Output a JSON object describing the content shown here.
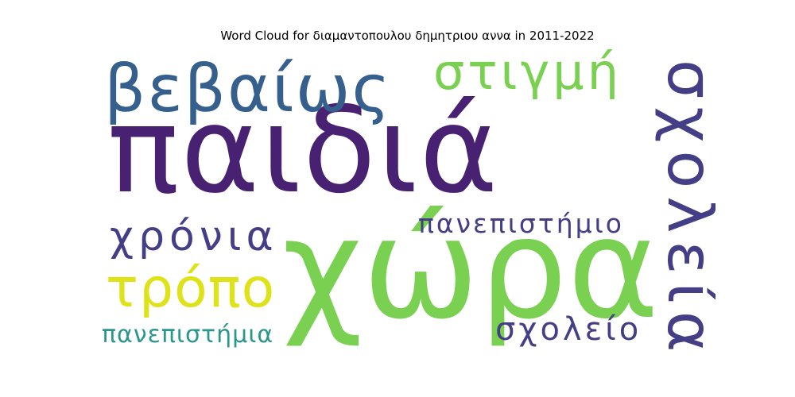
{
  "title": "Word Cloud for διαμαντοπουλου δημητριου αννα in 2011-2022",
  "chart_data": {
    "type": "wordcloud",
    "title": "Word Cloud for διαμαντοπουλου δημητριου αννα in 2011-2022",
    "words": [
      {
        "text": "παιδιά",
        "weight": 1.0,
        "color": "#482173",
        "orientation": "horizontal"
      },
      {
        "text": "χώρα",
        "weight": 0.9,
        "color": "#7ad151",
        "orientation": "horizontal"
      },
      {
        "text": "σχολεία",
        "weight": 0.55,
        "color": "#433e85",
        "orientation": "vertical"
      },
      {
        "text": "βεβαίως",
        "weight": 0.5,
        "color": "#355f8d",
        "orientation": "horizontal"
      },
      {
        "text": "στιγμή",
        "weight": 0.4,
        "color": "#7ad151",
        "orientation": "horizontal"
      },
      {
        "text": "τρόπο",
        "weight": 0.4,
        "color": "#dde318",
        "orientation": "horizontal"
      },
      {
        "text": "χρόνια",
        "weight": 0.35,
        "color": "#433e85",
        "orientation": "horizontal"
      },
      {
        "text": "πανεπιστήμιο",
        "weight": 0.25,
        "color": "#433e85",
        "orientation": "horizontal"
      },
      {
        "text": "σχολείο",
        "weight": 0.25,
        "color": "#433e85",
        "orientation": "horizontal"
      },
      {
        "text": "πανεπιστήμια",
        "weight": 0.22,
        "color": "#2a968c",
        "orientation": "horizontal"
      }
    ]
  }
}
